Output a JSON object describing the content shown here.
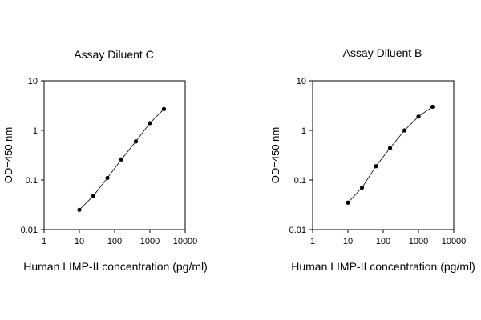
{
  "chart_data": [
    {
      "type": "line",
      "title": "Assay Diluent C",
      "xlabel": "Human LIMP-II concentration (pg/ml)",
      "ylabel": "OD=450 nm",
      "xscale": "log",
      "yscale": "log",
      "xlim": [
        1,
        10000
      ],
      "ylim": [
        0.01,
        10
      ],
      "xticks": [
        "1",
        "10",
        "100",
        "1000",
        "10000"
      ],
      "yticks": [
        "0.01",
        "0.1",
        "1",
        "10"
      ],
      "grid": false,
      "series": [
        {
          "x": [
            10,
            25,
            62.5,
            156,
            400,
            1000,
            2500
          ],
          "y": [
            0.025,
            0.048,
            0.11,
            0.26,
            0.6,
            1.4,
            2.7
          ]
        }
      ]
    },
    {
      "type": "line",
      "title": "Assay Diluent B",
      "xlabel": "Human LIMP-II concentration (pg/ml)",
      "ylabel": "OD=450 nm",
      "xscale": "log",
      "yscale": "log",
      "xlim": [
        1,
        10000
      ],
      "ylim": [
        0.01,
        10
      ],
      "xticks": [
        "1",
        "10",
        "100",
        "1000",
        "10000"
      ],
      "yticks": [
        "0.01",
        "0.1",
        "1",
        "10"
      ],
      "grid": false,
      "series": [
        {
          "x": [
            10,
            25,
            62.5,
            156,
            400,
            1000,
            2500
          ],
          "y": [
            0.035,
            0.07,
            0.19,
            0.44,
            1.0,
            1.9,
            3.0
          ]
        }
      ]
    }
  ]
}
